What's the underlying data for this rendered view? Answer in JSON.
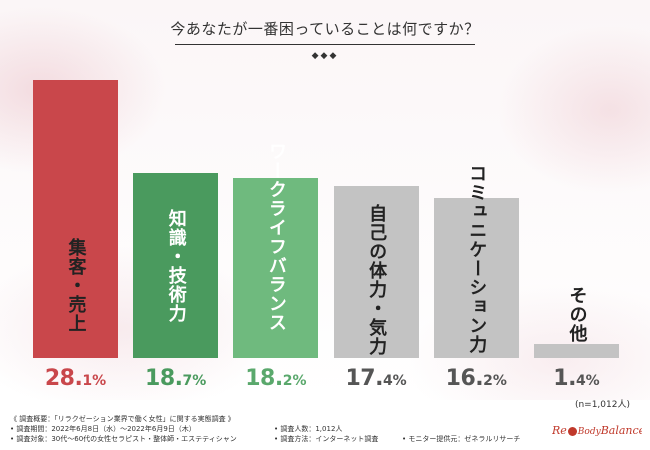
{
  "title": "今あなたが一番困っていることは何ですか？",
  "decoration": "◆◆◆",
  "sample_note": "(n=1,012人)",
  "notes": {
    "summary": "《 調査概要：「リラクゼーション業界で働く女性」に関する実態調査 》",
    "period": "• 調査期間：2022年6月8日（水）～2022年6月9日（木）",
    "respondents": "• 調査人数：1,012人",
    "target": "• 調査対象：30代～60代の女性セラピスト・整体師・エステティシャン",
    "method": "• 調査方法：インターネット調査",
    "monitor": "• モニター提供元：ゼネラルリサーチ"
  },
  "logo": {
    "text_left": "Re",
    "text_mid": "Body",
    "text_right": "Balance",
    "color": "#c0392b"
  },
  "chart_data": {
    "type": "bar",
    "title": "今あなたが一番困っていることは何ですか？",
    "categories": [
      "集客・売上",
      "知識・技術力",
      "ワークライフバランス",
      "自己の体力・気力",
      "コミュニケーション力",
      "その他"
    ],
    "values": [
      28.1,
      18.7,
      18.2,
      17.4,
      16.2,
      1.4
    ],
    "value_labels": [
      "28.1%",
      "18.7%",
      "18.2%",
      "17.4%",
      "16.2%",
      "1.4%"
    ],
    "unit": "%",
    "ylim": [
      0,
      28.1
    ],
    "bar_colors": [
      "#c9474b",
      "#4a9a5e",
      "#6fba7e",
      "#c3c3c3",
      "#c3c3c3",
      "#c3c3c3"
    ],
    "label_colors": [
      "#222222",
      "#ffffff",
      "#ffffff",
      "#222222",
      "#222222",
      "#222222"
    ],
    "value_label_colors": [
      "#c9474b",
      "#4a9a5e",
      "#5aa86c",
      "#555555",
      "#555555",
      "#555555"
    ],
    "grid": false,
    "legend": "none"
  }
}
